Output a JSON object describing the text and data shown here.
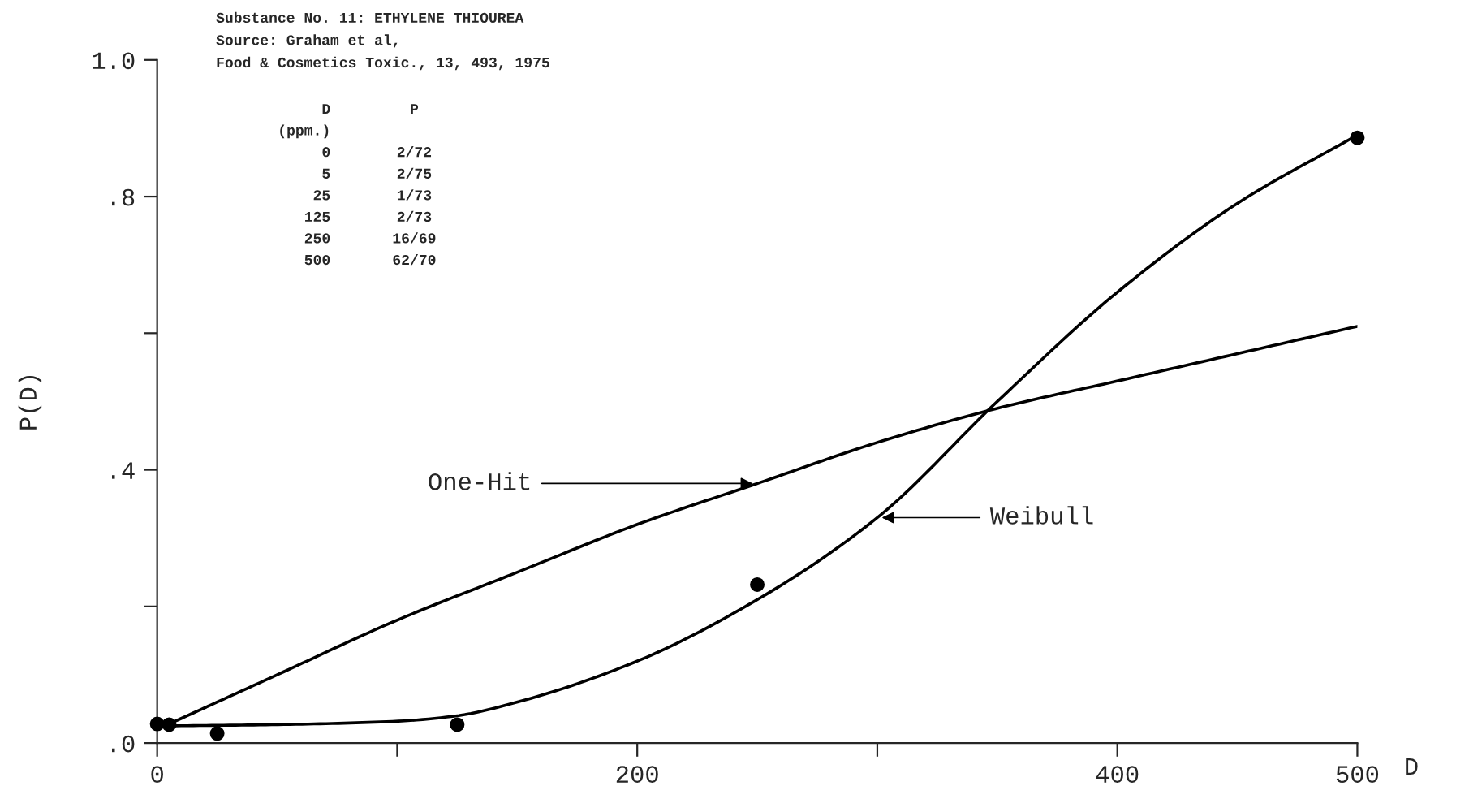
{
  "chart_data": {
    "type": "line",
    "ylabel": "P(D)",
    "xlabel": "D",
    "annotations": [
      "Substance No. 11: ETHYLENE THIOUREA",
      "Source: Graham et al,",
      "Food & Cosmetics Toxic., 13, 493, 1975",
      "D\tP",
      "(ppm.)\t",
      "0\t2/72",
      "5\t2/75",
      "25\t1/73",
      "125\t2/73",
      "250\t16/69",
      "500\t62/70"
    ],
    "xlim": [
      0,
      500
    ],
    "ylim": [
      0,
      1.0
    ],
    "xticks": [
      0,
      {
        "value": 100,
        "label": null
      },
      200,
      {
        "value": 300,
        "label": null
      },
      400,
      500
    ],
    "yticks": [
      {
        "value": 0,
        "label": ".0"
      },
      {
        "value": 0.2,
        "label": null
      },
      {
        "value": 0.4,
        "label": ".4"
      },
      {
        "value": 0.6,
        "label": null
      },
      {
        "value": 0.8,
        "label": ".8"
      },
      {
        "value": 1.0,
        "label": "1.0"
      }
    ],
    "grid": false,
    "series": [
      {
        "type": "scatter",
        "color": "#000000",
        "marker": "circle",
        "x": [
          0,
          5,
          25,
          125,
          250,
          500
        ],
        "values": [
          0.028,
          0.027,
          0.014,
          0.027,
          0.232,
          0.886
        ]
      },
      {
        "name": "One-Hit",
        "color": "#000000",
        "line_style": "solid",
        "x": [
          0,
          50,
          100,
          150,
          200,
          250,
          300,
          350,
          400,
          450,
          500
        ],
        "values": [
          0.02,
          0.1,
          0.18,
          0.25,
          0.32,
          0.38,
          0.44,
          0.49,
          0.53,
          0.57,
          0.61
        ]
      },
      {
        "name": "Weibull",
        "color": "#000000",
        "line_style": "solid",
        "x": [
          0,
          50,
          100,
          125,
          150,
          200,
          250,
          300,
          350,
          400,
          450,
          500
        ],
        "values": [
          0.025,
          0.027,
          0.032,
          0.04,
          0.06,
          0.12,
          0.21,
          0.33,
          0.5,
          0.66,
          0.79,
          0.89
        ]
      }
    ]
  }
}
